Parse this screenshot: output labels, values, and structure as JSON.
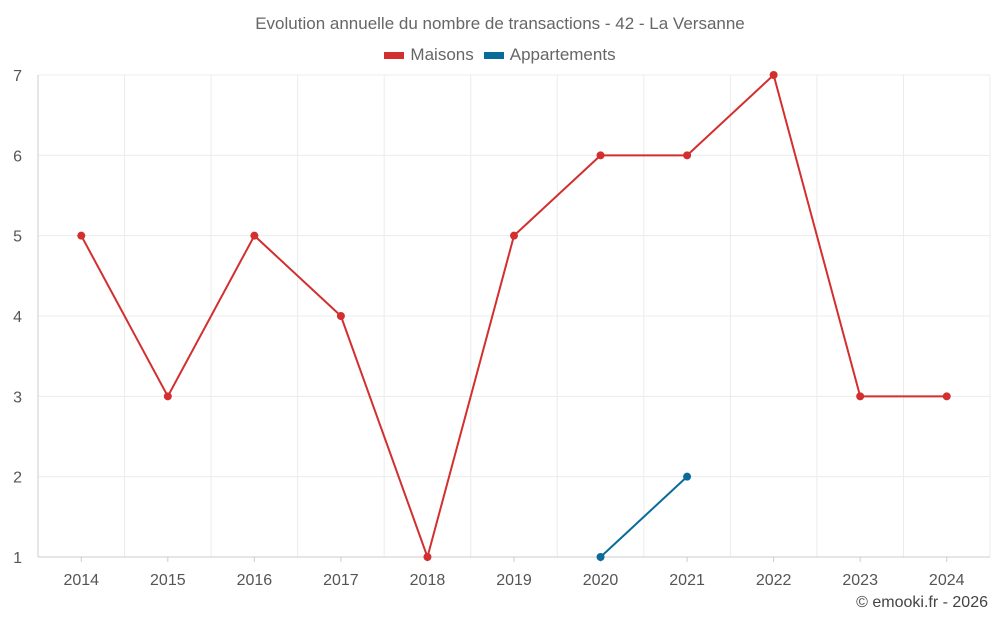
{
  "chart_data": {
    "type": "line",
    "title": "Evolution annuelle du nombre de transactions - 42 - La Versanne",
    "categories": [
      "2014",
      "2015",
      "2016",
      "2017",
      "2018",
      "2019",
      "2020",
      "2021",
      "2022",
      "2023",
      "2024"
    ],
    "series": [
      {
        "name": "Maisons",
        "color": "#d32f2f",
        "values": [
          5,
          3,
          5,
          4,
          1,
          5,
          6,
          6,
          7,
          3,
          3
        ]
      },
      {
        "name": "Appartements",
        "color": "#0a6b9b",
        "values": [
          null,
          null,
          null,
          null,
          null,
          null,
          1,
          2,
          null,
          null,
          null
        ]
      }
    ],
    "ylim": [
      1,
      7
    ],
    "yticks": [
      1,
      2,
      3,
      4,
      5,
      6,
      7
    ],
    "xlabel": "",
    "ylabel": "",
    "grid": true,
    "legend": "top-center"
  },
  "credit": "© emooki.fr - 2026"
}
